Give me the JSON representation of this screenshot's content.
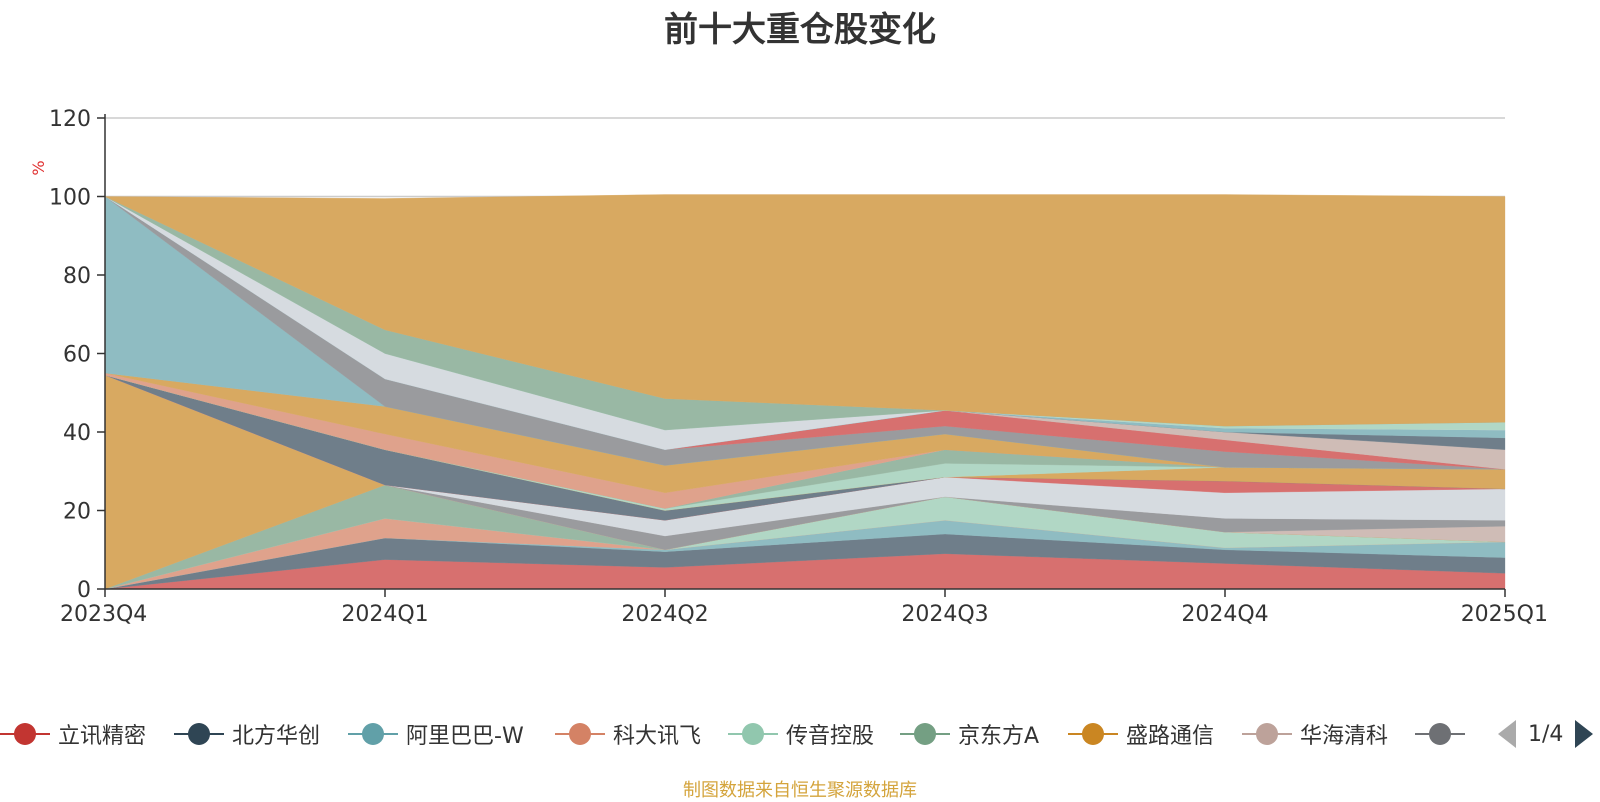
{
  "title": "前十大重仓股变化",
  "source_note": "制图数据来自恒生聚源数据库",
  "pager": {
    "text": "1/4"
  },
  "chart_data": {
    "type": "area",
    "stacked": true,
    "title": "前十大重仓股变化",
    "ylabel": "%",
    "ylim": [
      0,
      120
    ],
    "y_ticks": [
      0,
      20,
      40,
      60,
      80,
      100,
      120
    ],
    "grid": true,
    "legend_position": "bottom",
    "categories": [
      "2023Q4",
      "2024Q1",
      "2024Q2",
      "2024Q3",
      "2024Q4",
      "2025Q1"
    ],
    "series": [
      {
        "name": "立讯精密",
        "legend_color": "#c23531",
        "fill": "#d7706f",
        "values": [
          0,
          7.5,
          5.5,
          9,
          6.5,
          4
        ]
      },
      {
        "name": "北方华创",
        "legend_color": "#2f4554",
        "fill": "#6f7e8a",
        "values": [
          0,
          5.5,
          4,
          5,
          3.5,
          4
        ]
      },
      {
        "name": "阿里巴巴-W",
        "legend_color": "#61a0a8",
        "fill": "#8fbcc2",
        "values": [
          0,
          0,
          0.5,
          3.5,
          0.5,
          4
        ]
      },
      {
        "name": "科大讯飞",
        "legend_color": "#d48265",
        "fill": "#dfa28c",
        "values": [
          0,
          5,
          0,
          0,
          0,
          0
        ]
      },
      {
        "name": "传音控股",
        "legend_color": "#91c7ae",
        "fill": "#b1d7c5",
        "values": [
          0,
          0,
          0,
          6,
          4,
          0
        ]
      },
      {
        "name": "京东方A",
        "legend_color": "#749f83",
        "fill": "#99b8a4",
        "values": [
          0,
          8.5,
          0,
          0,
          0,
          0
        ]
      },
      {
        "name": "盛路通信",
        "legend_color": "#ca8622",
        "fill": "#d8a961",
        "values": [
          54.5,
          0,
          0,
          0,
          0,
          0
        ]
      },
      {
        "name": "华海清科",
        "legend_color": "#bda29a",
        "fill": "#cfbcb6",
        "values": [
          0,
          0,
          0,
          0,
          0,
          4
        ]
      },
      {
        "name": "",
        "legend_color": "#6e7074",
        "fill": "#9a9b9e",
        "values": [
          0,
          0,
          3.5,
          0,
          3.5,
          1.5
        ]
      },
      {
        "name": "",
        "legend_color": "#c4ccd3",
        "fill": "#d6dbe0",
        "values": [
          0,
          0,
          4,
          5,
          6.5,
          8
        ]
      },
      {
        "name": "",
        "legend_color": "#c23531",
        "fill": "#d7706f",
        "values": [
          0,
          0,
          0,
          0,
          3,
          0
        ]
      },
      {
        "name": "",
        "legend_color": "#2f4554",
        "fill": "#6f7e8a",
        "values": [
          0,
          9,
          2.5,
          0,
          0,
          0
        ]
      },
      {
        "name": "",
        "legend_color": "#ca8622",
        "fill": "#d8a961",
        "values": [
          0,
          0,
          0,
          0,
          3.5,
          5
        ]
      },
      {
        "name": "",
        "legend_color": "#91c7ae",
        "fill": "#b1d7c5",
        "values": [
          0,
          0,
          0.5,
          3.5,
          0,
          0
        ]
      },
      {
        "name": "",
        "legend_color": "#749f83",
        "fill": "#99b8a4",
        "values": [
          0,
          0,
          0,
          3.5,
          0,
          0
        ]
      },
      {
        "name": "",
        "legend_color": "#d48265",
        "fill": "#dfa28c",
        "values": [
          0.5,
          4,
          4,
          0,
          0,
          0
        ]
      },
      {
        "name": "",
        "legend_color": "#ca8622",
        "fill": "#d8a961",
        "values": [
          0,
          7,
          7,
          4,
          0,
          0
        ]
      },
      {
        "name": "",
        "legend_color": "#61a0a8",
        "fill": "#8fbcc2",
        "values": [
          45,
          0,
          0,
          0,
          0,
          0
        ]
      },
      {
        "name": "",
        "legend_color": "#6e7074",
        "fill": "#9a9b9e",
        "values": [
          0,
          7,
          4,
          2,
          4,
          0
        ]
      },
      {
        "name": "",
        "legend_color": "#c23531",
        "fill": "#d7706f",
        "values": [
          0,
          0,
          0,
          4,
          3,
          0
        ]
      },
      {
        "name": "",
        "legend_color": "#bda29a",
        "fill": "#cfbcb6",
        "values": [
          0,
          0,
          0,
          0,
          2,
          5
        ]
      },
      {
        "name": "",
        "legend_color": "#2f4554",
        "fill": "#6f7e8a",
        "values": [
          0,
          0,
          0,
          0,
          0,
          3
        ]
      },
      {
        "name": "",
        "legend_color": "#61a0a8",
        "fill": "#8fbcc2",
        "values": [
          0,
          0,
          0,
          0,
          1,
          2
        ]
      },
      {
        "name": "",
        "legend_color": "#c4ccd3",
        "fill": "#d6dbe0",
        "values": [
          0,
          6.5,
          5,
          0,
          0,
          0
        ]
      },
      {
        "name": "",
        "legend_color": "#91c7ae",
        "fill": "#b1d7c5",
        "values": [
          0,
          0,
          0,
          0,
          0.5,
          2
        ]
      },
      {
        "name": "",
        "legend_color": "#749f83",
        "fill": "#99b8a4",
        "values": [
          0,
          6,
          8,
          0,
          0,
          0
        ]
      },
      {
        "name": "",
        "legend_color": "#ca8622",
        "fill": "#d8a961",
        "values": [
          0,
          33.5,
          52,
          55,
          59,
          57.5
        ]
      }
    ]
  }
}
